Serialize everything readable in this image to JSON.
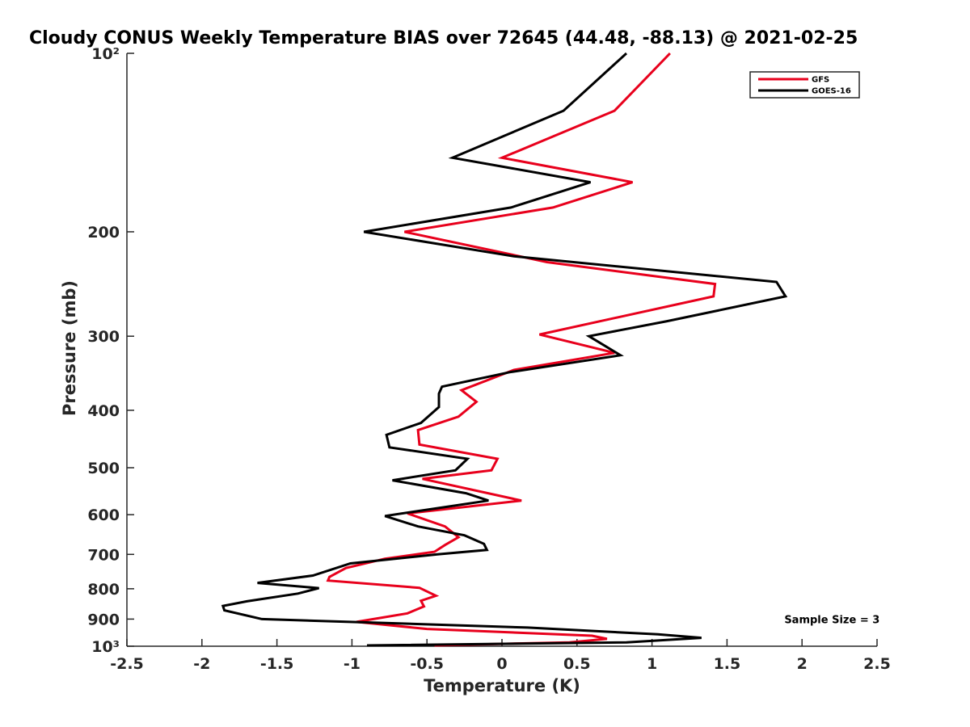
{
  "chart_data": {
    "type": "line",
    "title": "Cloudy CONUS Weekly Temperature BIAS over 72645 (44.48, -88.13) @ 2021-02-25",
    "xlabel": "Temperature (K)",
    "ylabel": "Pressure (mb)",
    "xlim": [
      -2.5,
      2.5
    ],
    "ylim": [
      100,
      1000
    ],
    "y_scale": "log",
    "y_reversed": true,
    "x_ticks": [
      -2.5,
      -2,
      -1.5,
      -1,
      -0.5,
      0,
      0.5,
      1,
      1.5,
      2,
      2.5
    ],
    "x_tick_labels": [
      "-2.5",
      "-2",
      "-1.5",
      "-1",
      "-0.5",
      "0",
      "0.5",
      "1",
      "1.5",
      "2",
      "2.5"
    ],
    "y_ticks": [
      100,
      200,
      300,
      400,
      500,
      600,
      700,
      800,
      900,
      1000
    ],
    "y_tick_labels": [
      "10²",
      "200",
      "300",
      "400",
      "500",
      "600",
      "700",
      "800",
      "900",
      "10³"
    ],
    "grid": false,
    "legend_position": "top-right",
    "series": [
      {
        "name": "GFS",
        "color": "#e8001c",
        "points": [
          [
            1.12,
            100
          ],
          [
            0.75,
            125
          ],
          [
            0,
            150
          ],
          [
            0.87,
            165
          ],
          [
            0.34,
            182
          ],
          [
            -0.65,
            200
          ],
          [
            0.3,
            225
          ],
          [
            1.42,
            245
          ],
          [
            1.41,
            257
          ],
          [
            0.25,
            298
          ],
          [
            0.75,
            320
          ],
          [
            0.08,
            342
          ],
          [
            -0.27,
            370
          ],
          [
            -0.17,
            387
          ],
          [
            -0.29,
            410
          ],
          [
            -0.56,
            432
          ],
          [
            -0.55,
            457
          ],
          [
            -0.03,
            483
          ],
          [
            -0.07,
            505
          ],
          [
            -0.53,
            522
          ],
          [
            0.13,
            568
          ],
          [
            -0.63,
            597
          ],
          [
            -0.38,
            628
          ],
          [
            -0.29,
            655
          ],
          [
            -0.38,
            675
          ],
          [
            -0.45,
            693
          ],
          [
            -0.78,
            712
          ],
          [
            -1.04,
            738
          ],
          [
            -1.15,
            764
          ],
          [
            -1.16,
            775
          ],
          [
            -0.55,
            797
          ],
          [
            -0.44,
            822
          ],
          [
            -0.54,
            838
          ],
          [
            -0.52,
            857
          ],
          [
            -0.63,
            880
          ],
          [
            -0.97,
            910
          ],
          [
            -0.5,
            935
          ],
          [
            0.6,
            960
          ],
          [
            0.7,
            972
          ],
          [
            0.45,
            985
          ],
          [
            -0.45,
            997
          ]
        ]
      },
      {
        "name": "GOES-16",
        "color": "#000000",
        "points": [
          [
            0.83,
            100
          ],
          [
            0.41,
            125
          ],
          [
            -0.33,
            150
          ],
          [
            0.59,
            165
          ],
          [
            0.06,
            182
          ],
          [
            -0.92,
            200
          ],
          [
            0.08,
            220
          ],
          [
            1.83,
            243
          ],
          [
            1.89,
            257
          ],
          [
            1.1,
            283
          ],
          [
            0.58,
            300
          ],
          [
            0.79,
            323
          ],
          [
            0.05,
            345
          ],
          [
            -0.4,
            365
          ],
          [
            -0.42,
            375
          ],
          [
            -0.42,
            395
          ],
          [
            -0.54,
            420
          ],
          [
            -0.77,
            440
          ],
          [
            -0.75,
            462
          ],
          [
            -0.23,
            483
          ],
          [
            -0.31,
            505
          ],
          [
            -0.73,
            525
          ],
          [
            -0.24,
            552
          ],
          [
            -0.09,
            568
          ],
          [
            -0.78,
            603
          ],
          [
            -0.56,
            628
          ],
          [
            -0.25,
            650
          ],
          [
            -0.12,
            672
          ],
          [
            -0.1,
            688
          ],
          [
            -0.43,
            700
          ],
          [
            -1.01,
            725
          ],
          [
            -1.26,
            760
          ],
          [
            -1.63,
            782
          ],
          [
            -1.22,
            798
          ],
          [
            -1.36,
            815
          ],
          [
            -1.7,
            840
          ],
          [
            -1.86,
            855
          ],
          [
            -1.85,
            870
          ],
          [
            -1.6,
            900
          ],
          [
            0.17,
            930
          ],
          [
            1.04,
            955
          ],
          [
            1.33,
            968
          ],
          [
            0.83,
            985
          ],
          [
            -0.9,
            997
          ]
        ]
      }
    ],
    "annotations": [
      {
        "text": "Sample Size = 3",
        "x": 2.2,
        "y": 900
      }
    ]
  }
}
